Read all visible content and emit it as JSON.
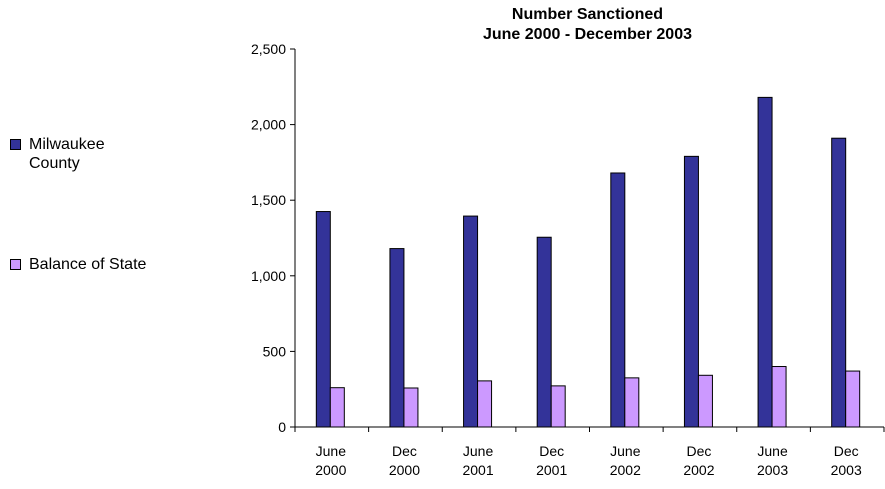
{
  "chart_data": {
    "type": "bar",
    "title_lines": [
      "Number Sanctioned",
      "June 2000 - December 2003"
    ],
    "categories": [
      [
        "June",
        "2000"
      ],
      [
        "Dec",
        "2000"
      ],
      [
        "June",
        "2001"
      ],
      [
        "Dec",
        "2001"
      ],
      [
        "June",
        "2002"
      ],
      [
        "Dec",
        "2002"
      ],
      [
        "June",
        "2003"
      ],
      [
        "Dec",
        "2003"
      ]
    ],
    "series": [
      {
        "name": "Milwaukee County",
        "color": "#333399",
        "values": [
          1425,
          1180,
          1395,
          1255,
          1680,
          1790,
          2180,
          1910
        ]
      },
      {
        "name": "Balance of State",
        "color": "#CC99FF",
        "values": [
          260,
          258,
          305,
          272,
          325,
          342,
          400,
          370
        ]
      }
    ],
    "ylim": [
      0,
      2500
    ],
    "yticks": [
      {
        "value": 0,
        "label": "0"
      },
      {
        "value": 500,
        "label": "500"
      },
      {
        "value": 1000,
        "label": "1,000"
      },
      {
        "value": 1500,
        "label": "1,500"
      },
      {
        "value": 2000,
        "label": "2,000"
      },
      {
        "value": 2500,
        "label": "2,500"
      }
    ],
    "grid": false,
    "legend_position": "left"
  }
}
